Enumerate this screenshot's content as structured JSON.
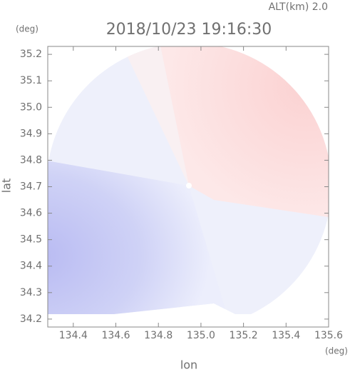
{
  "chart_data": {
    "type": "radar-image",
    "title": "2018/10/23 19:16:30",
    "subtitle": "ALT(km) 2.0",
    "xlabel": "lon",
    "ylabel": "lat",
    "xunit": "(deg)",
    "yunit": "(deg)",
    "xlim": [
      134.28,
      135.6
    ],
    "ylim": [
      34.17,
      35.23
    ],
    "xticks": [
      134.4,
      134.6,
      134.8,
      {
        "value": 135,
        "label": "135.0"
      },
      135.2,
      135.4,
      135.6
    ],
    "yticks": [
      34.2,
      34.3,
      34.4,
      34.5,
      34.6,
      34.7,
      34.8,
      34.9,
      {
        "value": 35,
        "label": "35.0"
      },
      35.1,
      35.2
    ]
  }
}
